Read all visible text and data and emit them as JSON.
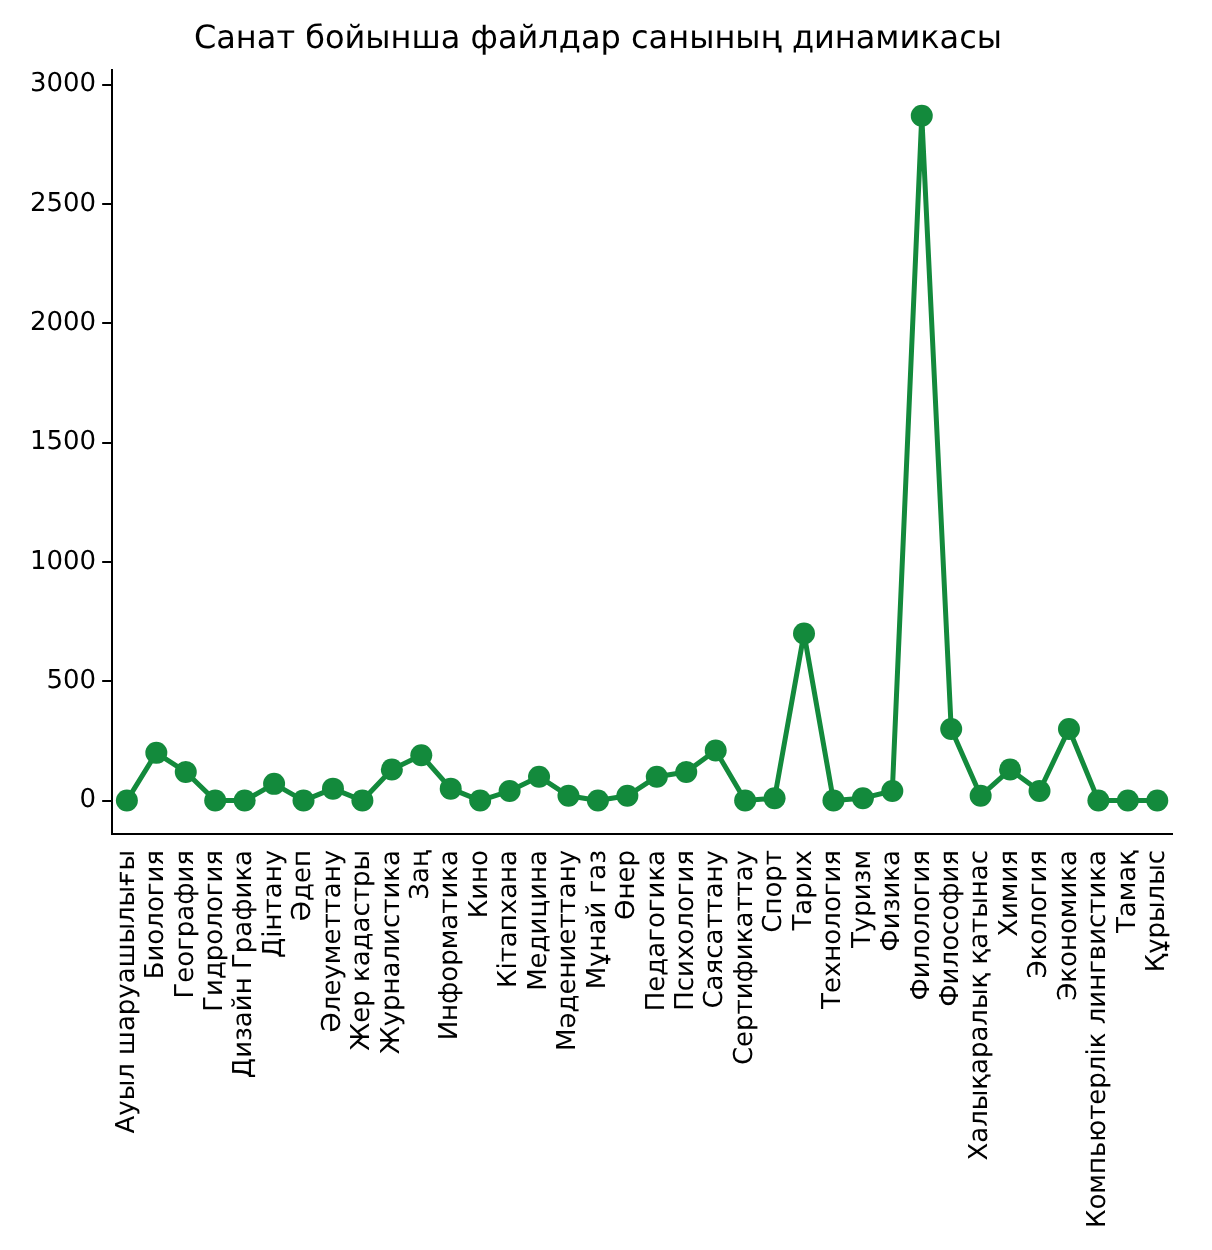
{
  "chart_data": {
    "type": "line",
    "title": "Санат бойынша файлдар санының динамикасы",
    "categories": [
      "Ауыл шаруашылығы",
      "Биология",
      "География",
      "Гидрология",
      "Дизайн Графика",
      "Дінтану",
      "Әдеп",
      "Әлеуметтану",
      "Жер кадастры",
      "Журналистика",
      "Заң",
      "Информатика",
      "Кино",
      "Кітапхана",
      "Медицина",
      "Мәдениеттану",
      "Мұнай газ",
      "Өнер",
      "Педагогика",
      "Психология",
      "Саясаттану",
      "Сертификаттау",
      "Спорт",
      "Тарих",
      "Технология",
      "Туризм",
      "Физика",
      "Филология",
      "Философия",
      "Халықаралық қатынас",
      "Химия",
      "Экология",
      "Экономика",
      "Компьютерлік лингвистика",
      "Тамақ",
      "Құрылыс"
    ],
    "series": [
      {
        "color": "#138a3c",
        "values": [
          0,
          200,
          120,
          0,
          0,
          70,
          0,
          50,
          0,
          130,
          190,
          50,
          0,
          40,
          100,
          20,
          0,
          20,
          100,
          120,
          210,
          0,
          10,
          700,
          0,
          10,
          40,
          2870,
          300,
          20,
          130,
          40,
          300,
          0,
          0,
          0
        ]
      }
    ],
    "ylim": [
      -140,
      3060
    ],
    "yticks": [
      0,
      500,
      1000,
      1500,
      2000,
      2500,
      3000
    ],
    "grid": false,
    "legend": false,
    "marker": "circle",
    "line_style": "solid"
  }
}
